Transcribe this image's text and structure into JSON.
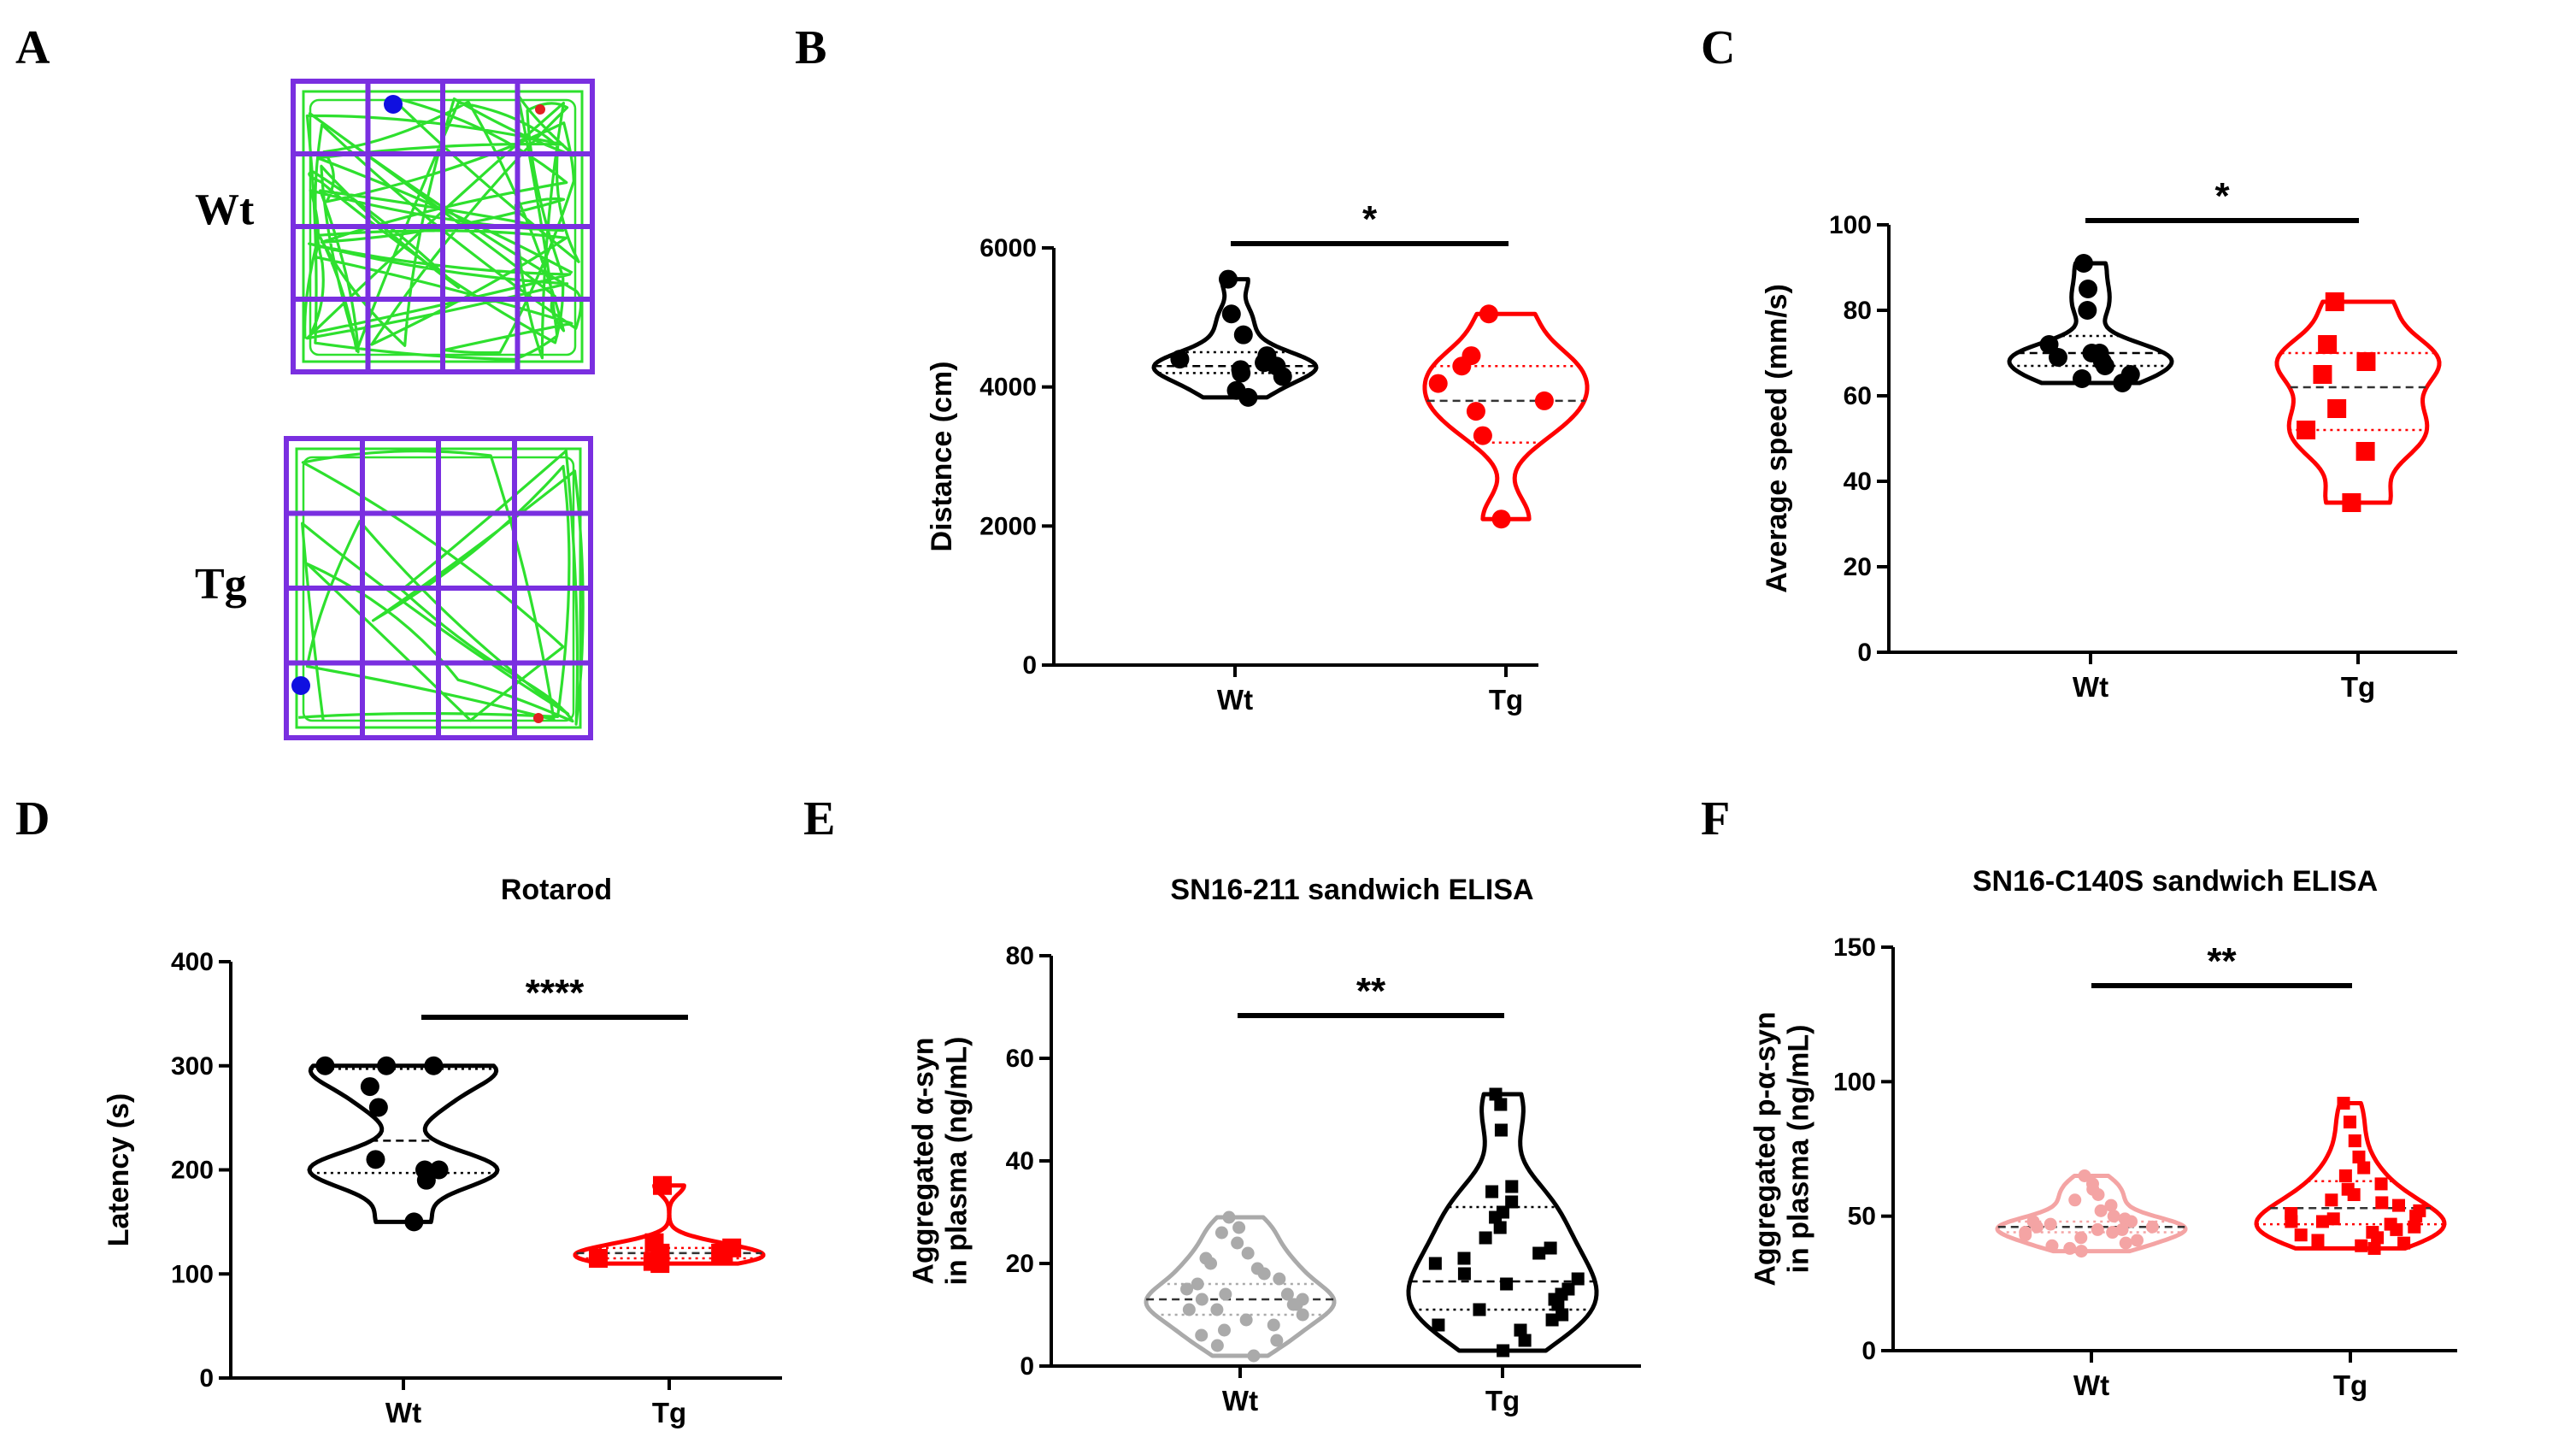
{
  "panel_labels": [
    "A",
    "B",
    "C",
    "D",
    "E",
    "F"
  ],
  "open_field": {
    "groups": [
      "Wt",
      "Tg"
    ],
    "grid": "4x4",
    "colors": {
      "border": "#7a2fe0",
      "track": "#2ee02e",
      "start": "#1010e0",
      "end": "#e02020"
    }
  },
  "chart_data": [
    {
      "panel": "B",
      "type": "violin",
      "title": "",
      "ylabel": "Distance (cm)",
      "xlabel": "",
      "ylim": [
        0,
        6000
      ],
      "yticks": [
        0,
        2000,
        4000,
        6000
      ],
      "categories": [
        "Wt",
        "Tg"
      ],
      "significance": "*",
      "series": [
        {
          "name": "Wt",
          "color": "#000000",
          "marker": "circle",
          "values": [
            5550,
            5050,
            4750,
            4450,
            4400,
            4350,
            4300,
            4250,
            4200,
            4150,
            3950,
            3850
          ],
          "median": 4300,
          "q1": 4200,
          "q3": 4500
        },
        {
          "name": "Tg",
          "color": "#ff0000",
          "marker": "circle",
          "values": [
            5050,
            4450,
            4300,
            4050,
            3800,
            3650,
            3300,
            2100
          ],
          "median": 3800,
          "q1": 3200,
          "q3": 4300
        }
      ]
    },
    {
      "panel": "C",
      "type": "violin",
      "title": "",
      "ylabel": "Average speed (mm/s)",
      "xlabel": "",
      "ylim": [
        0,
        100
      ],
      "yticks": [
        0,
        20,
        40,
        60,
        80,
        100
      ],
      "categories": [
        "Wt",
        "Tg"
      ],
      "significance": "*",
      "series": [
        {
          "name": "Wt",
          "color": "#000000",
          "marker": "circle",
          "values": [
            91,
            85,
            80,
            72,
            70,
            70,
            69,
            68,
            67,
            65,
            64,
            63
          ],
          "median": 70,
          "q1": 67,
          "q3": 74
        },
        {
          "name": "Tg",
          "color": "#ff0000",
          "marker": "square",
          "values": [
            82,
            72,
            68,
            65,
            57,
            52,
            47,
            35
          ],
          "median": 62,
          "q1": 52,
          "q3": 70
        }
      ]
    },
    {
      "panel": "D",
      "type": "violin",
      "title": "Rotarod",
      "ylabel": "Latency (s)",
      "xlabel": "",
      "ylim": [
        0,
        400
      ],
      "yticks": [
        0,
        100,
        200,
        300,
        400
      ],
      "categories": [
        "Wt",
        "Tg"
      ],
      "significance": "****",
      "series": [
        {
          "name": "Wt",
          "color": "#000000",
          "marker": "circle",
          "values": [
            300,
            300,
            300,
            280,
            260,
            210,
            200,
            200,
            190,
            150
          ],
          "median": 228,
          "q1": 197,
          "q3": 297
        },
        {
          "name": "Tg",
          "color": "#ff0000",
          "marker": "square",
          "values": [
            185,
            130,
            125,
            120,
            120,
            118,
            115,
            112,
            110
          ],
          "median": 120,
          "q1": 115,
          "q3": 125
        }
      ]
    },
    {
      "panel": "E",
      "type": "violin",
      "title": "SN16-211 sandwich ELISA",
      "ylabel": "Aggregated α-syn in plasma (ng/mL)",
      "xlabel": "",
      "ylim": [
        0,
        80
      ],
      "yticks": [
        0,
        20,
        40,
        60,
        80
      ],
      "categories": [
        "Wt",
        "Tg"
      ],
      "significance": "**",
      "series": [
        {
          "name": "Wt",
          "color": "#aaaaaa",
          "marker": "circle",
          "values": [
            29,
            27,
            26,
            24,
            22,
            21,
            20,
            19,
            18,
            17,
            16,
            15,
            14,
            14,
            13,
            13,
            12,
            12,
            11,
            11,
            10,
            9,
            8,
            7,
            6,
            5,
            4,
            2
          ],
          "median": 13,
          "q1": 10,
          "q3": 16
        },
        {
          "name": "Tg",
          "color": "#000000",
          "marker": "square",
          "values": [
            53,
            51,
            46,
            35,
            34,
            32,
            30,
            29,
            27,
            25,
            23,
            22,
            21,
            20,
            18,
            17,
            16,
            15,
            14,
            13,
            12,
            11,
            10,
            9,
            8,
            7,
            5,
            3
          ],
          "median": 16.5,
          "q1": 11,
          "q3": 31
        }
      ]
    },
    {
      "panel": "F",
      "type": "violin",
      "title": "SN16-C140S sandwich ELISA",
      "ylabel": "Aggregated p-α-syn in plasma (ng/mL)",
      "xlabel": "",
      "ylim": [
        0,
        150
      ],
      "yticks": [
        0,
        50,
        100,
        150
      ],
      "categories": [
        "Wt",
        "Tg"
      ],
      "significance": "**",
      "series": [
        {
          "name": "Wt",
          "color": "#f4a4a4",
          "marker": "circle",
          "values": [
            65,
            62,
            60,
            58,
            56,
            54,
            52,
            50,
            49,
            48,
            48,
            47,
            46,
            46,
            45,
            45,
            44,
            44,
            43,
            42,
            41,
            40,
            39,
            38,
            37
          ],
          "median": 46,
          "q1": 44,
          "q3": 48
        },
        {
          "name": "Tg",
          "color": "#ff0000",
          "marker": "square",
          "values": [
            92,
            85,
            78,
            72,
            68,
            65,
            62,
            60,
            58,
            56,
            55,
            54,
            52,
            51,
            50,
            49,
            48,
            48,
            47,
            46,
            45,
            44,
            43,
            42,
            41,
            40,
            39,
            38
          ],
          "median": 53,
          "q1": 47,
          "q3": 63
        }
      ]
    }
  ]
}
